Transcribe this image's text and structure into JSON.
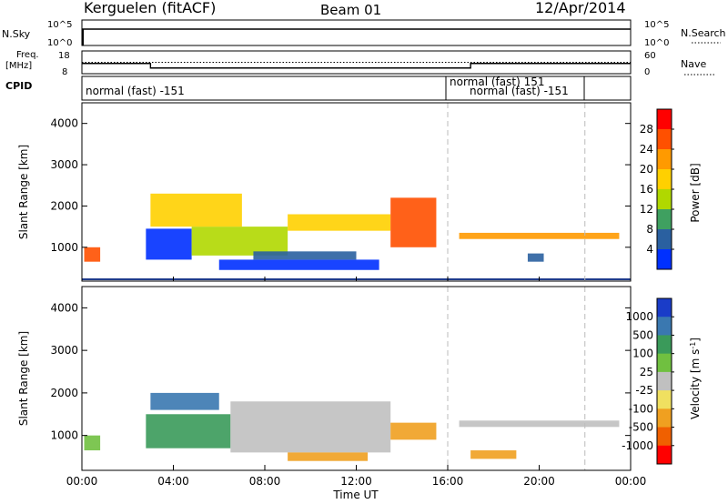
{
  "header": {
    "station": "Kerguelen (fitACF)",
    "beam": "Beam 01",
    "date": "12/Apr/2014"
  },
  "strips": {
    "nsky_label": "N.Sky",
    "nsky_ticks": [
      "10^5",
      "10^0"
    ],
    "nsearch_label": "N.Search",
    "nsearch_ticks": [
      "10^5",
      "10^0"
    ],
    "freq_label": "Freq.",
    "freq_unit": "[MHz]",
    "freq_ticks": [
      "18",
      "8"
    ],
    "nave_label": "Nave",
    "nave_ticks": [
      "60",
      "0"
    ],
    "cpid_label": "CPID",
    "cpid_segments": [
      {
        "text": "normal (fast) -151"
      },
      {
        "text": "normal (fast) 151"
      },
      {
        "text": "normal (fast) -151"
      }
    ]
  },
  "axes": {
    "xlabel": "Time UT",
    "xticks": [
      "00:00",
      "04:00",
      "08:00",
      "12:00",
      "16:00",
      "20:00",
      "00:00"
    ],
    "ylabel": "Slant Range [km]",
    "yticks": [
      "4000",
      "3000",
      "2000",
      "1000"
    ]
  },
  "colorbars": {
    "power": {
      "label": "Power [dB]",
      "ticks": [
        "28",
        "24",
        "20",
        "16",
        "12",
        "8",
        "4"
      ],
      "colors": [
        "#ff0000",
        "#ff5000",
        "#ff9a00",
        "#ffd000",
        "#b0d800",
        "#3fa060",
        "#2a60a0",
        "#0030ff"
      ]
    },
    "velocity": {
      "label": "Velocity [m s",
      "label_sup": "-1",
      "label_end": "]",
      "ticks": [
        "1000",
        "500",
        "100",
        "25",
        "-25",
        "-100",
        "-500",
        "-1000"
      ],
      "colors": [
        "#1a3cc8",
        "#3a78b0",
        "#3a9a5a",
        "#70c040",
        "#c0c0c0",
        "#f0e060",
        "#f0a020",
        "#f06000",
        "#ff0000"
      ]
    }
  },
  "chart_data": {
    "type": "heatmap",
    "x_range_hours": [
      0,
      24
    ],
    "y_range_km": [
      180,
      4500
    ],
    "markers_hours": [
      16,
      22
    ],
    "frequency_mhz": [
      {
        "start": 0,
        "end": 3,
        "value": 12.5
      },
      {
        "start": 3,
        "end": 17,
        "value": 10.5
      },
      {
        "start": 17,
        "end": 24,
        "value": 12.5
      }
    ],
    "nave": {
      "value": 30
    },
    "power_regions": [
      {
        "t0": 0.1,
        "t1": 0.8,
        "r0": 650,
        "r1": 1000,
        "level": 1
      },
      {
        "t0": 2.8,
        "t1": 4.8,
        "r0": 700,
        "r1": 1450,
        "level": 7
      },
      {
        "t0": 4.8,
        "t1": 9.0,
        "r0": 800,
        "r1": 1500,
        "level": 4
      },
      {
        "t0": 9.0,
        "t1": 13.5,
        "r0": 1400,
        "r1": 1800,
        "level": 3
      },
      {
        "t0": 13.5,
        "t1": 15.5,
        "r0": 1000,
        "r1": 2200,
        "level": 1
      },
      {
        "t0": 6.0,
        "t1": 13.0,
        "r0": 450,
        "r1": 700,
        "level": 7
      },
      {
        "t0": 7.5,
        "t1": 12.0,
        "r0": 700,
        "r1": 900,
        "level": 6
      },
      {
        "t0": 16.5,
        "t1": 23.5,
        "r0": 1200,
        "r1": 1350,
        "level": 2
      },
      {
        "t0": 19.5,
        "t1": 20.2,
        "r0": 650,
        "r1": 850,
        "level": 6
      },
      {
        "t0": 3.0,
        "t1": 7.0,
        "r0": 1500,
        "r1": 2300,
        "level": 3
      }
    ],
    "velocity_regions": [
      {
        "t0": 0.1,
        "t1": 0.8,
        "r0": 650,
        "r1": 1000,
        "level": 3
      },
      {
        "t0": 2.8,
        "t1": 6.5,
        "r0": 700,
        "r1": 1500,
        "level": 2
      },
      {
        "t0": 6.5,
        "t1": 13.5,
        "r0": 600,
        "r1": 1800,
        "level": 4
      },
      {
        "t0": 9.0,
        "t1": 12.5,
        "r0": 400,
        "r1": 600,
        "level": 6
      },
      {
        "t0": 13.5,
        "t1": 15.5,
        "r0": 900,
        "r1": 1300,
        "level": 6
      },
      {
        "t0": 16.5,
        "t1": 23.5,
        "r0": 1200,
        "r1": 1350,
        "level": 4
      },
      {
        "t0": 17.0,
        "t1": 19.0,
        "r0": 450,
        "r1": 650,
        "level": 6
      },
      {
        "t0": 3.0,
        "t1": 6.0,
        "r0": 1600,
        "r1": 2000,
        "level": 1
      }
    ]
  }
}
